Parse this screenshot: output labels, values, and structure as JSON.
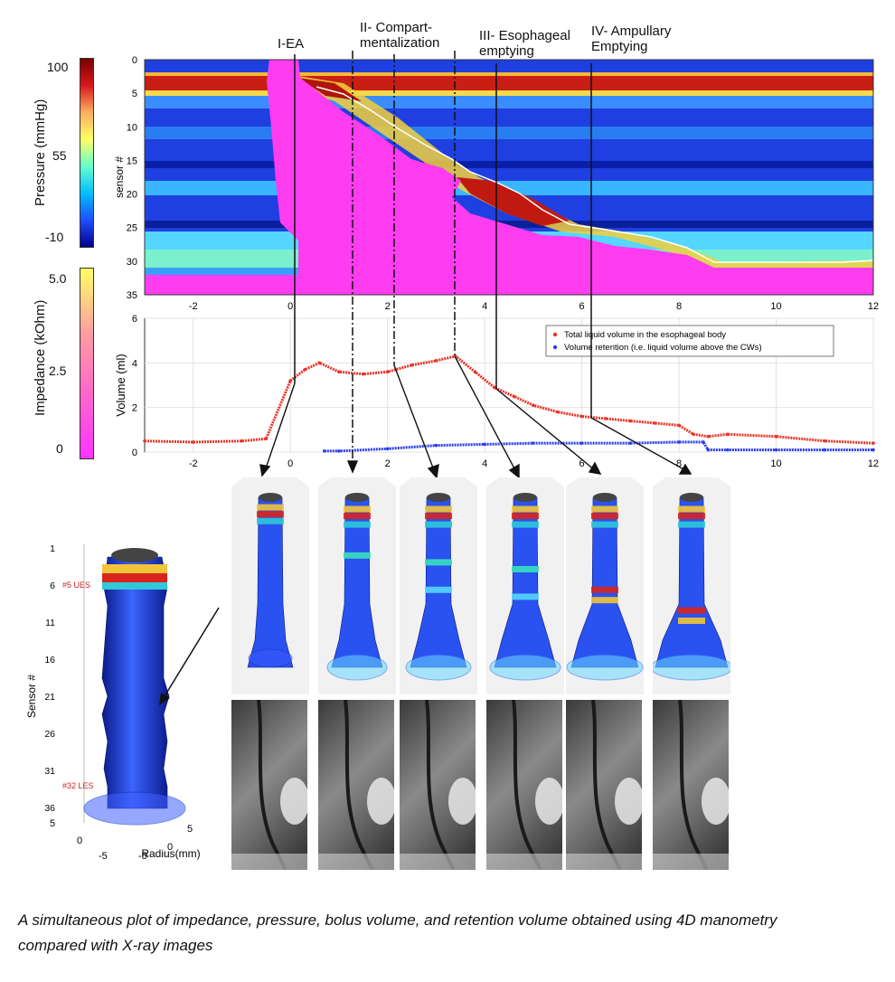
{
  "caption": "A simultaneous plot of impedance, pressure, bolus volume, and retention volume obtained using 4D manometry compared with X-ray images",
  "phases": [
    {
      "id": "I",
      "label": "I-EA"
    },
    {
      "id": "II",
      "label": "II- Compart-\nmentalization"
    },
    {
      "id": "III",
      "label": "III- Esophageal\nemptying"
    },
    {
      "id": "IV",
      "label": "IV- Ampullary\nEmptying"
    }
  ],
  "colorbars": {
    "pressure": {
      "label": "Pressure (mmHg)",
      "ticks": [
        "100",
        "55",
        "-10"
      ],
      "colors": [
        "#7a0000",
        "#d7191c",
        "#fdae61",
        "#ffff66",
        "#66ffcc",
        "#00bfff",
        "#1f4fff",
        "#00008b"
      ]
    },
    "impedance": {
      "label": "Impedance (kOhm)",
      "ticks": [
        "5.0",
        "2.5",
        "0"
      ],
      "colors": [
        "#ffff66",
        "#ff9fa0",
        "#ff66cc",
        "#ff33ff"
      ]
    }
  },
  "chart_data": [
    {
      "type": "heatmap",
      "ylabel": "sensor #",
      "xlim": [
        -3,
        12
      ],
      "ylim": [
        0,
        35
      ],
      "xticks": [
        "-2",
        "0",
        "2",
        "4",
        "6",
        "8",
        "10",
        "12"
      ],
      "yticks": [
        "0",
        "5",
        "10",
        "15",
        "20",
        "25",
        "30",
        "35"
      ],
      "grid": false
    },
    {
      "type": "line",
      "xlabel": "",
      "ylabel": "Volume (ml)",
      "xlim": [
        -3,
        12
      ],
      "ylim": [
        0,
        6
      ],
      "xticks": [
        "-2",
        "0",
        "2",
        "4",
        "6",
        "8",
        "10",
        "12"
      ],
      "yticks": [
        "0",
        "2",
        "4",
        "6"
      ],
      "legend_position": "top-right",
      "series": [
        {
          "name": "Total liquid volume in the esophageal body",
          "color": "#e8362a",
          "x": [
            -3,
            -2,
            -1,
            -0.5,
            0,
            0.3,
            0.6,
            1,
            1.5,
            2,
            2.5,
            3,
            3.4,
            3.8,
            4.2,
            4.6,
            5,
            5.5,
            6,
            6.5,
            7,
            7.5,
            8,
            8.3,
            8.6,
            9,
            10,
            11,
            12
          ],
          "y": [
            0.5,
            0.45,
            0.5,
            0.6,
            3.2,
            3.7,
            4.0,
            3.6,
            3.5,
            3.6,
            3.9,
            4.1,
            4.3,
            3.6,
            2.9,
            2.5,
            2.1,
            1.8,
            1.6,
            1.5,
            1.4,
            1.3,
            1.2,
            0.8,
            0.7,
            0.8,
            0.7,
            0.5,
            0.4
          ]
        },
        {
          "name": "Volume retention (i.e. liquid volume above the CWs)",
          "color": "#2a3cf0",
          "x": [
            0.7,
            1,
            2,
            3,
            4,
            5,
            6,
            7,
            8,
            8.5,
            8.6,
            9,
            10,
            11,
            12
          ],
          "y": [
            0.05,
            0.05,
            0.15,
            0.3,
            0.35,
            0.4,
            0.4,
            0.4,
            0.45,
            0.45,
            0.1,
            0.1,
            0.1,
            0.1,
            0.1
          ]
        }
      ]
    }
  ],
  "model_large": {
    "ylabel": "Sensor #",
    "xlabel": "Radius(mm)",
    "yticks": [
      "1",
      "6",
      "11",
      "16",
      "21",
      "26",
      "31",
      "36"
    ],
    "xticks": [
      "-5",
      "0",
      "5"
    ],
    "depth_ticks": [
      "5",
      "0",
      "-5"
    ],
    "annotations": [
      "#5 UES",
      "#32 LES"
    ]
  },
  "thumbnails": [
    {
      "time": 0
    },
    {
      "time": 1.35
    },
    {
      "time": 2.2
    },
    {
      "time": 3.4
    },
    {
      "time": 4.2
    },
    {
      "time": 6.2
    }
  ]
}
